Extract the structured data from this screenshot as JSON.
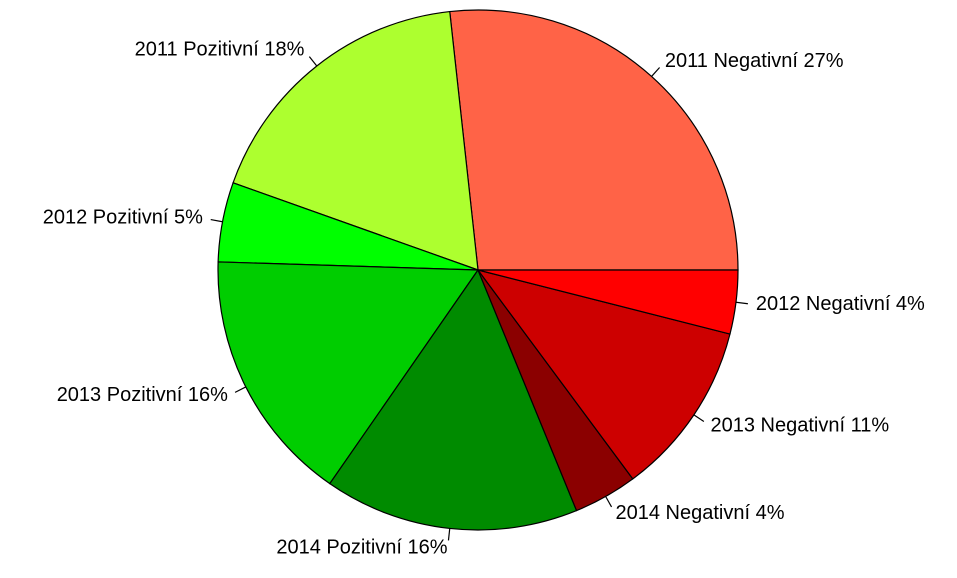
{
  "chart_data": {
    "type": "pie",
    "start_angle_deg": 0,
    "direction": "counterclockwise",
    "slices": [
      {
        "label": "2011 Negativní 27%",
        "value": 27,
        "color": "#ff6347"
      },
      {
        "label": "2011 Pozitivní 18%",
        "value": 18,
        "color": "#adff2f"
      },
      {
        "label": "2012 Pozitivní 5%",
        "value": 5,
        "color": "#00ff00"
      },
      {
        "label": "2013 Pozitivní 16%",
        "value": 16,
        "color": "#00cd00"
      },
      {
        "label": "2014 Pozitivní 16%",
        "value": 16,
        "color": "#008b00"
      },
      {
        "label": "2014 Negativní 4%",
        "value": 4,
        "color": "#8b0000"
      },
      {
        "label": "2013 Negativní 11%",
        "value": 11,
        "color": "#cd0000"
      },
      {
        "label": "2012 Negativní 4%",
        "value": 4,
        "color": "#ff0000"
      }
    ]
  }
}
